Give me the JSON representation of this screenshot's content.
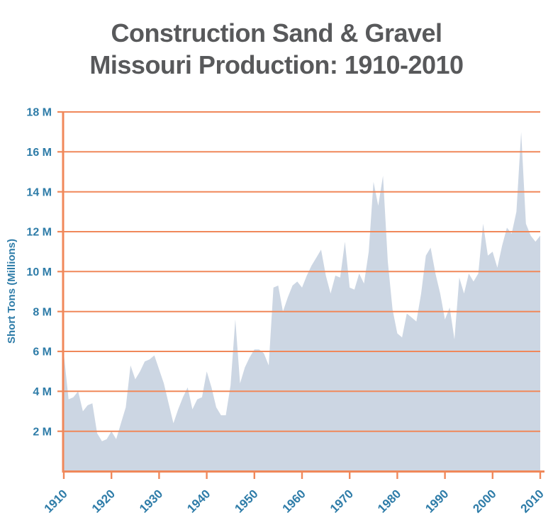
{
  "title": {
    "line1": "Construction Sand & Gravel",
    "line2": "Missouri Production: 1910-2010"
  },
  "chart_data": {
    "type": "area",
    "title": "Construction Sand & Gravel Missouri Production: 1910-2010",
    "ylabel": "Short Tons (Millions)",
    "xlabel": "",
    "xlim": [
      1910,
      2010
    ],
    "ylim": [
      0,
      18
    ],
    "grid": "horizontal",
    "legend": "none",
    "x": {
      "start": 1910,
      "end": 2010,
      "step": 1
    },
    "values": [
      5.9,
      3.6,
      3.7,
      4.0,
      3.0,
      3.3,
      3.4,
      1.9,
      1.5,
      1.6,
      2.0,
      1.6,
      2.4,
      3.2,
      5.3,
      4.6,
      5.0,
      5.5,
      5.6,
      5.8,
      5.1,
      4.4,
      3.4,
      2.4,
      3.1,
      3.7,
      4.2,
      3.1,
      3.6,
      3.7,
      5.0,
      4.2,
      3.2,
      2.8,
      2.8,
      4.3,
      7.6,
      4.4,
      5.2,
      5.7,
      6.1,
      6.1,
      5.9,
      5.3,
      9.2,
      9.3,
      8.0,
      8.7,
      9.3,
      9.5,
      9.2,
      9.8,
      10.3,
      10.7,
      11.1,
      9.8,
      8.9,
      9.8,
      9.7,
      11.5,
      9.2,
      9.1,
      9.9,
      9.4,
      11.0,
      14.5,
      13.3,
      14.8,
      10.5,
      8.1,
      6.9,
      6.7,
      7.9,
      7.7,
      7.5,
      8.9,
      10.8,
      11.2,
      9.9,
      8.9,
      7.6,
      8.2,
      6.6,
      9.7,
      8.9,
      9.9,
      9.5,
      9.9,
      12.4,
      10.8,
      11.0,
      10.2,
      11.3,
      12.2,
      11.9,
      13.0,
      17.0,
      12.4,
      11.8,
      11.5,
      11.8
    ],
    "x_tick_labels": [
      "1910",
      "1920",
      "1930",
      "1940",
      "1950",
      "1960",
      "1970",
      "1980",
      "1990",
      "2000",
      "2010"
    ],
    "y_tick_values": [
      2,
      4,
      6,
      8,
      10,
      12,
      14,
      16,
      18
    ],
    "y_tick_labels": [
      "2 M",
      "4 M",
      "6 M",
      "8 M",
      "10 M",
      "12 M",
      "14 M",
      "16 M",
      "18 M"
    ],
    "colors": {
      "background": "#ffffff",
      "area_fill": "#ccd6e3",
      "gridline": "#f0885a",
      "axis_line": "#f0885a",
      "tick_label": "#2e7ca8",
      "axis_title": "#2e7ca8",
      "chart_title": "#58595b"
    }
  }
}
